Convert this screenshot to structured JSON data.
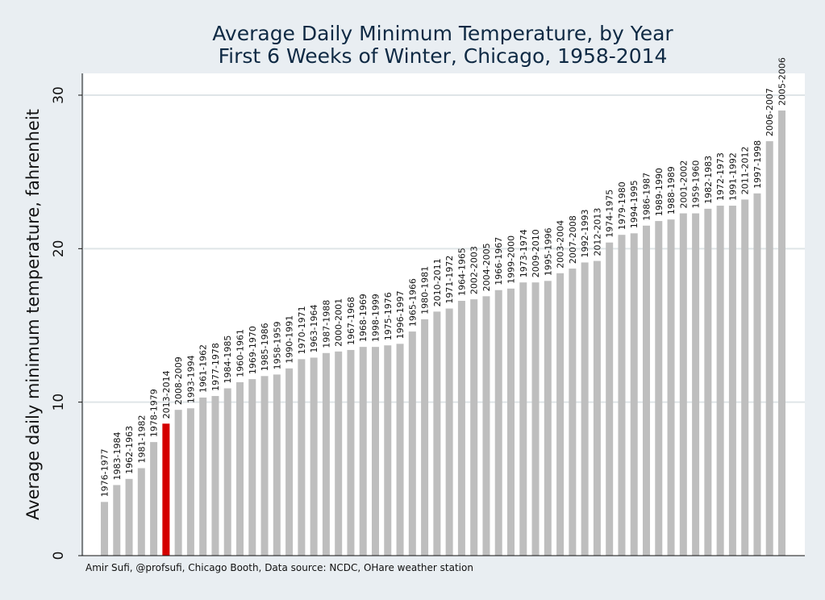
{
  "chart_data": {
    "type": "bar",
    "title": "Average Daily Minimum Temperature, by Year",
    "subtitle": "First 6 Weeks of Winter, Chicago, 1958-2014",
    "ylabel": "Average daily minimum temperature, fahrenheit",
    "xlabel": "",
    "ylim": [
      0,
      30
    ],
    "yticks": [
      0,
      10,
      20,
      30
    ],
    "grid": true,
    "legend": "none",
    "bar_color": "#bebebe",
    "highlight_color": "#d40000",
    "highlight_category": "2013-2014",
    "background_color": "#e9eef2",
    "plot_background_color": "#ffffff",
    "caption": "Amir Sufi, @profsufi, Chicago Booth, Data source: NCDC, OHare weather station",
    "categories": [
      "1976-1977",
      "1983-1984",
      "1962-1963",
      "1981-1982",
      "1978-1979",
      "2013-2014",
      "2008-2009",
      "1993-1994",
      "1961-1962",
      "1977-1978",
      "1984-1985",
      "1960-1961",
      "1969-1970",
      "1985-1986",
      "1958-1959",
      "1990-1991",
      "1970-1971",
      "1963-1964",
      "1987-1988",
      "2000-2001",
      "1967-1968",
      "1968-1969",
      "1998-1999",
      "1975-1976",
      "1996-1997",
      "1965-1966",
      "1980-1981",
      "2010-2011",
      "1971-1972",
      "1964-1965",
      "2002-2003",
      "2004-2005",
      "1966-1967",
      "1999-2000",
      "1973-1974",
      "2009-2010",
      "1995-1996",
      "2003-2004",
      "2007-2008",
      "1992-1993",
      "2012-2013",
      "1974-1975",
      "1979-1980",
      "1994-1995",
      "1986-1987",
      "1989-1990",
      "1988-1989",
      "2001-2002",
      "1959-1960",
      "1982-1983",
      "1972-1973",
      "1991-1992",
      "2011-2012",
      "1997-1998",
      "2006-2007",
      "2005-2006"
    ],
    "values": [
      3.5,
      4.6,
      5.0,
      5.7,
      7.4,
      8.6,
      9.5,
      9.6,
      10.3,
      10.4,
      10.9,
      11.3,
      11.5,
      11.7,
      11.8,
      12.2,
      12.8,
      12.9,
      13.2,
      13.3,
      13.4,
      13.6,
      13.6,
      13.7,
      13.8,
      14.6,
      15.4,
      15.9,
      16.1,
      16.6,
      16.7,
      16.9,
      17.3,
      17.4,
      17.8,
      17.8,
      17.9,
      18.4,
      18.7,
      19.1,
      19.2,
      20.4,
      20.9,
      21.0,
      21.5,
      21.8,
      21.9,
      22.3,
      22.3,
      22.6,
      22.8,
      22.8,
      23.2,
      23.6,
      27.0,
      29.0
    ]
  }
}
